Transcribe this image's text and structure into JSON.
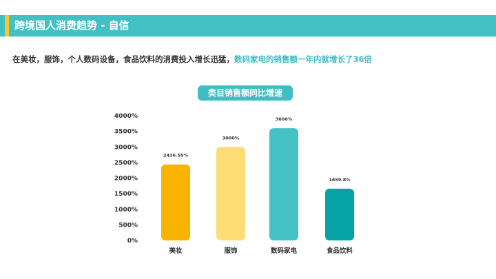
{
  "header": {
    "title": "跨境国人消费趋势 - 自信"
  },
  "summary": {
    "lead": "在美妆，服饰，个人数码设备，食品饮料的消费投入增长迅猛，",
    "highlight": "数码家电的销售额一年内就增长了36倍"
  },
  "chart_data": {
    "type": "bar",
    "title": "类目销售额同比增速",
    "categories": [
      "美妆",
      "服饰",
      "数码家电",
      "食品饮料"
    ],
    "values": [
      2436.55,
      3000,
      3600,
      1659.8
    ],
    "data_labels": [
      "2436.55%",
      "3000%",
      "3600%",
      "1659.8%"
    ],
    "colors": [
      "#f8b401",
      "#fedd77",
      "#44c2c6",
      "#06a2a4"
    ],
    "ylim": [
      0,
      4000
    ],
    "yticks": [
      0,
      500,
      1000,
      1500,
      2000,
      2500,
      3000,
      3500,
      4000
    ],
    "ytick_labels": [
      "0%",
      "500%",
      "1000%",
      "1500%",
      "2000%",
      "2500%",
      "3000%",
      "3500%",
      "4000%"
    ],
    "grid": false,
    "legend": "none",
    "xlabel": "",
    "ylabel": ""
  }
}
